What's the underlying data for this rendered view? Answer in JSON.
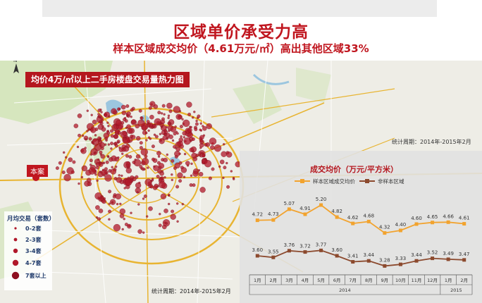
{
  "title": "区域单价承受力高",
  "subtitle": "样本区域成交均价（4.61万元/㎡）高出其他区域33%",
  "map": {
    "heatmap_title": "均价4万/㎡以上二手房楼盘交易量热力图",
    "marker_label": "本案",
    "legend_title": "月均交易（套数）",
    "legend_items": [
      "0-2套",
      "2-3套",
      "3-4套",
      "4-7套",
      "7套以上"
    ],
    "stat_period_bottom": "统计周期：2014年-2015年2月",
    "colors": {
      "dot": "#b0182a",
      "road": "#e8b431",
      "water": "#9cc6df",
      "park": "#cfe3b4"
    }
  },
  "stat_period_right": "统计周期：2014年-2015年2月",
  "chart_data": {
    "type": "line",
    "title": "成交均价（万元/平方米）",
    "categories": [
      "1月",
      "2月",
      "3月",
      "4月",
      "5月",
      "6月",
      "7月",
      "8月",
      "9月",
      "10月",
      "11月",
      "12月",
      "1月",
      "2月"
    ],
    "year_labels": [
      "2014",
      "2015"
    ],
    "series": [
      {
        "name": "样本区域成交均价",
        "color": "#f2a32e",
        "values": [
          4.72,
          4.73,
          5.07,
          4.91,
          5.2,
          4.82,
          4.62,
          4.68,
          4.32,
          4.4,
          4.6,
          4.65,
          4.66,
          4.61
        ]
      },
      {
        "name": "非样本区域",
        "color": "#8c4a2e",
        "values": [
          3.6,
          3.55,
          3.76,
          3.72,
          3.77,
          3.6,
          3.41,
          3.44,
          3.28,
          3.33,
          3.44,
          3.52,
          3.49,
          3.47
        ]
      }
    ]
  }
}
